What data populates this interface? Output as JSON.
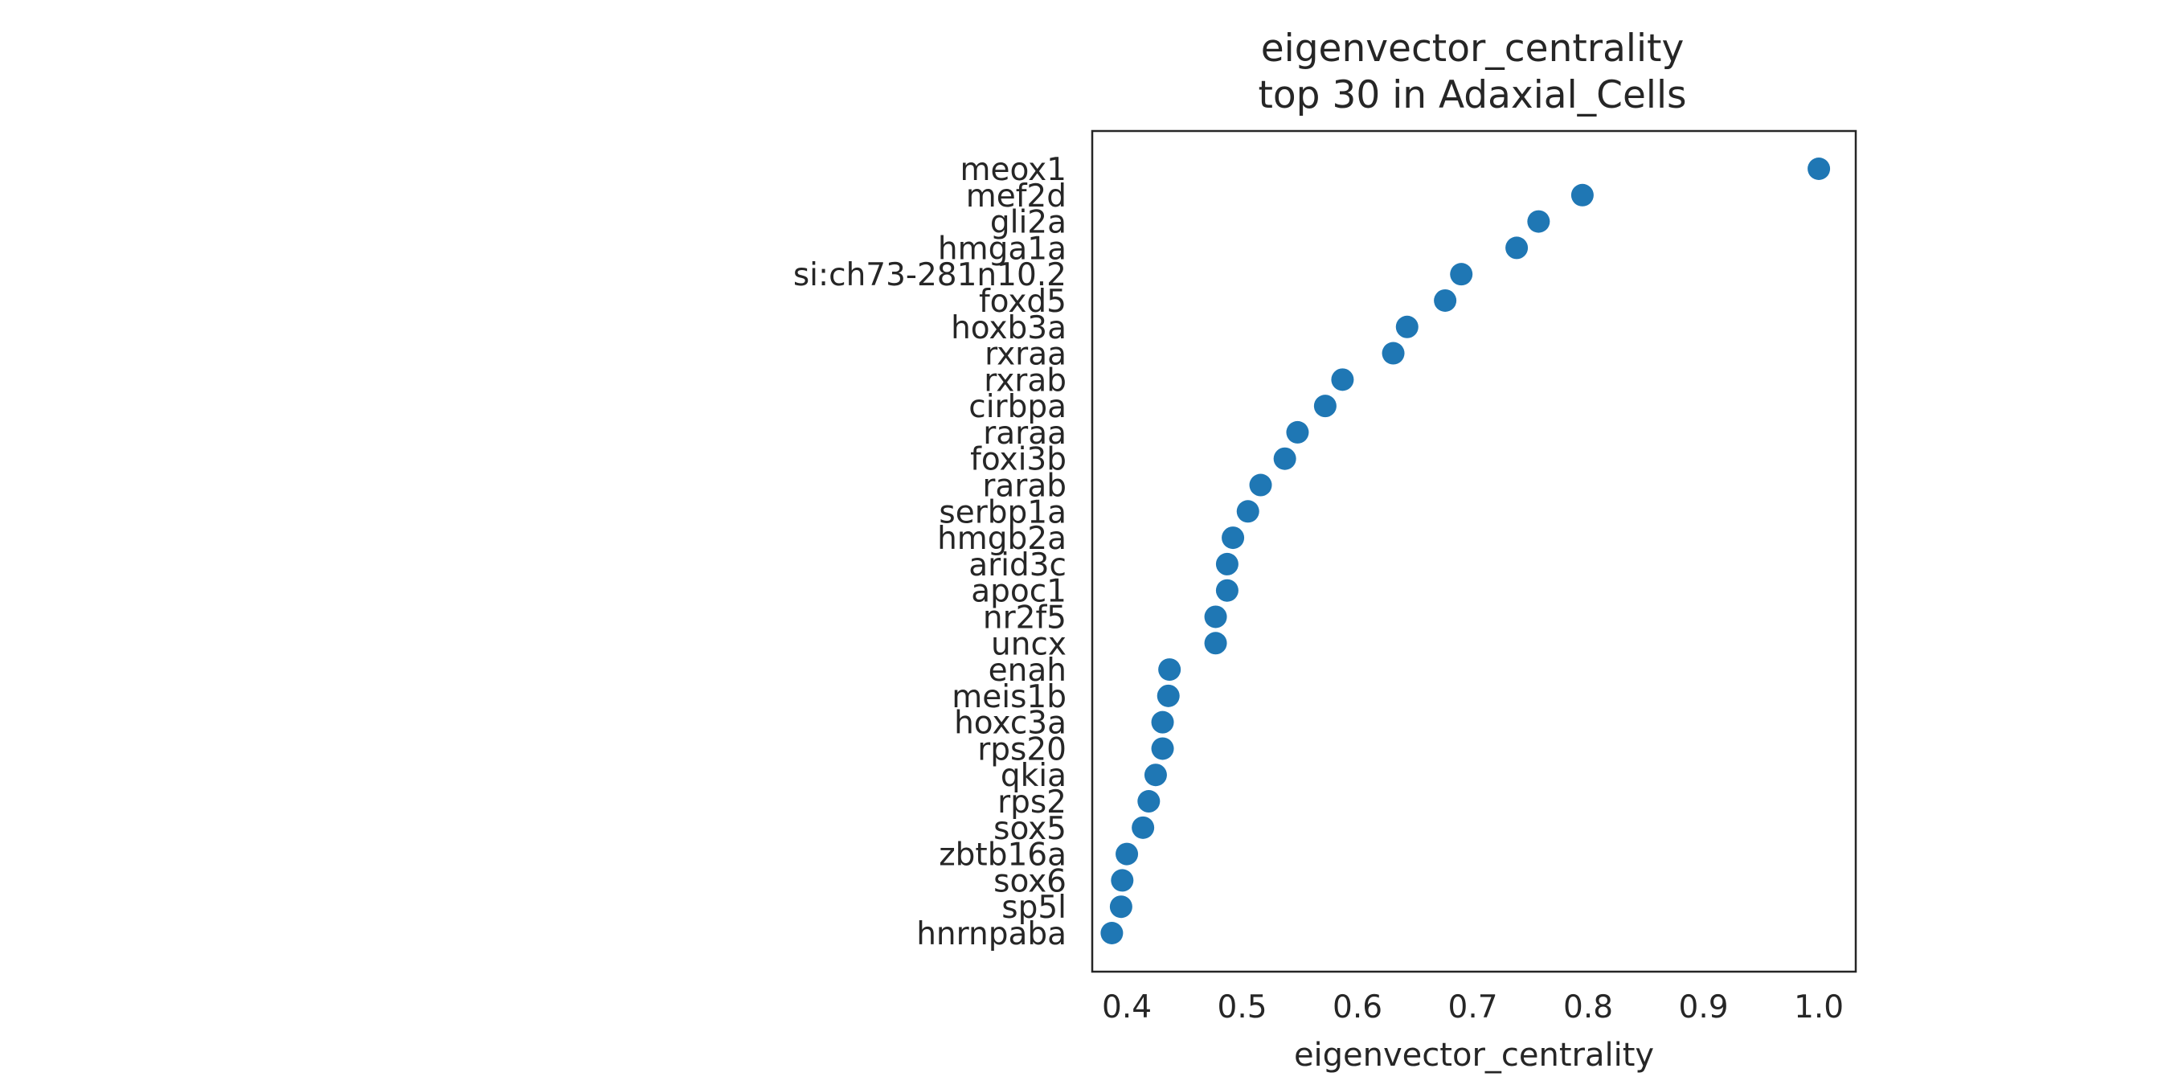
{
  "chart_data": {
    "type": "scatter",
    "title": [
      "eigenvector_centrality",
      "top 30 in Adaxial_Cells"
    ],
    "xlabel": "eigenvector_centrality",
    "ylabel": "",
    "xlim": [
      0.37,
      1.032
    ],
    "xticks": [
      "0.4",
      "0.5",
      "0.6",
      "0.7",
      "0.8",
      "0.9",
      "1.0"
    ],
    "grid": false,
    "marker_color": "#1f77b4",
    "categories": [
      "meox1",
      "mef2d",
      "gli2a",
      "hmga1a",
      "si:ch73-281n10.2",
      "foxd5",
      "hoxb3a",
      "rxraa",
      "rxrab",
      "cirbpa",
      "raraa",
      "foxi3b",
      "rarab",
      "serbp1a",
      "hmgb2a",
      "arid3c",
      "apoc1",
      "nr2f5",
      "uncx",
      "enah",
      "meis1b",
      "hoxc3a",
      "rps20",
      "qkia",
      "rps2",
      "sox5",
      "zbtb16a",
      "sox6",
      "sp5l",
      "hnrnpaba"
    ],
    "values": [
      1.0,
      0.795,
      0.757,
      0.738,
      0.69,
      0.676,
      0.643,
      0.631,
      0.587,
      0.572,
      0.548,
      0.537,
      0.516,
      0.505,
      0.492,
      0.487,
      0.487,
      0.477,
      0.477,
      0.437,
      0.436,
      0.431,
      0.431,
      0.425,
      0.419,
      0.414,
      0.4,
      0.396,
      0.395,
      0.387
    ]
  }
}
